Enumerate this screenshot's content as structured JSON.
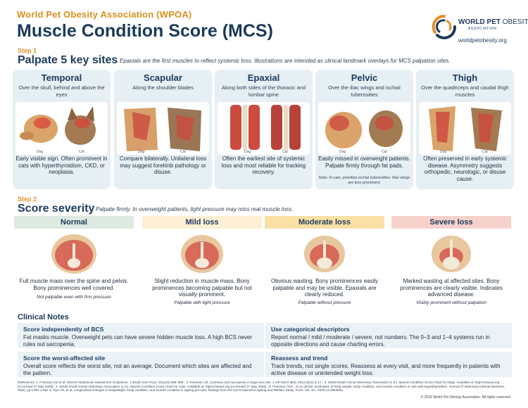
{
  "header": {
    "org": "World Pet Obesity Association (WPOA)",
    "title": "Muscle Condition Score (MCS)",
    "logo_line1_bold": "WORLD PET",
    "logo_line1_rest": " OBESITY",
    "logo_line2": "ASSOCIATION",
    "logo_url": "worldpetobesity.org"
  },
  "step1": {
    "label": "Step 1",
    "title": "Palpate 5 key sites",
    "note": "Epaxials are the first muscles to reflect systemic loss. Illustrations are intended as clinical landmark overlays for MCS palpation sites.",
    "sites": [
      {
        "name": "Temporal",
        "location": "Over the skull, behind and above the eyes",
        "desc": "Early visible sign. Often prominent in cats with hyperthyroidism, CKD, or neoplasia.",
        "dog": "Dog",
        "cat": "Cat"
      },
      {
        "name": "Scapular",
        "location": "Along the shoulder blades",
        "desc": "Compare bilaterally. Unilateral loss may suggest forelimb pathology or disuse.",
        "dog": "Dog",
        "cat": "Cat"
      },
      {
        "name": "Epaxial",
        "location": "Along both sides of the thoracic and lumbar spine",
        "desc": "Often the earliest site of systemic loss and most reliable for tracking recovery.",
        "dog": "Dog",
        "cat": "Cat"
      },
      {
        "name": "Pelvic",
        "location": "Over the iliac wings and ischial tuberosities",
        "desc": "Easily missed in overweight patients. Palpate firmly through fat pads.",
        "note": "Note: In cats, prioritize ischial tuberosities. Iliac wings are less prominent.",
        "dog": "Dog",
        "cat": "Cat"
      },
      {
        "name": "Thigh",
        "location": "Over the quadriceps and caudal thigh muscles",
        "desc": "Often preserved in early systemic disease. Asymmetry suggests orthopedic, neurologic, or disuse cause.",
        "dog": "Dog",
        "cat": "Cat"
      }
    ]
  },
  "step2": {
    "label": "Step 2",
    "title": "Score severity",
    "note": "Palpate firmly. In overweight patients, light pressure may miss real muscle loss.",
    "levels": [
      {
        "name": "Normal",
        "color": "#dde9e1",
        "desc": "Full muscle mass over the spine and pelvis. Bony prominences well covered.",
        "criterion": "Not palpable even with firm pressure"
      },
      {
        "name": "Mild loss",
        "color": "#fcefd3",
        "desc": "Slight reduction in muscle mass. Bony prominences becoming palpable but not visually prominent.",
        "criterion": "Palpable with light pressure"
      },
      {
        "name": "Moderate loss",
        "color": "#fbe0a6",
        "desc": "Obvious wasting. Bony prominences easily palpable and may be visible. Epaxials are clearly reduced.",
        "criterion": "Palpable without pressure"
      },
      {
        "name": "Severe loss",
        "color": "#f6d1cc",
        "desc": "Marked wasting at affected sites. Bony prominences are clearly visible. Indicates advanced disease.",
        "criterion": "Visibly prominent without palpation"
      }
    ]
  },
  "clinical": {
    "title": "Clinical Notes",
    "notes": [
      {
        "title": "Score independently of BCS",
        "body": "Fat masks muscle. Overweight pets can have severe hidden muscle loss. A high BCS never rules out sarcopenia."
      },
      {
        "title": "Use categorical descriptors",
        "body": "Report normal / mild / moderate / severe, not numbers. The 0–3 and 1–4 systems run in opposite directions and cause charting errors."
      },
      {
        "title": "Score the worst-affected site",
        "body": "Overall score reflects the worst site, not an average. Document which sites are affected and the pattern."
      },
      {
        "title": "Reassess and trend",
        "body": "Track trends, not single scores. Reassess at every visit, and more frequently in patients with active disease or unintended weight loss."
      }
    ]
  },
  "references": "References: 1. Freeman LM et al. WSAVA Nutritional Assessment Guidelines. J Small Anim Pract. 2011;52:385–396 ; 2. Freeman LM. Cachexia and sarcopenia in dogs and cats. J Vet Intern Med. 2012;26(1):3–17 ; 3. World Small Animal Veterinary Association (n.d.). Muscle Condition Score Chart for Dogs. Available at: https://wsava.org [Accessed 27 May 2026] ; 4. World Small Animal Veterinary Association (n.d.). Muscle Condition Score Chart for Cats. Available at: https://wsava.org [Accessed 27 May 2026] ; 5. Peterson, M.E., et al. (2016). Evaluation of body weight, body condition, and muscle condition in cats with hyperthyroidism. Journal of Veterinary Internal Medicine, 30(6), pp.1780–1789. 6. Pye CR, et al. Longitudinal changes in bodyweight, body condition, and muscle condition in ageing pet cats: findings from the Cat Prospective Ageing and Welfare Study. Front. Vet. Sci. 2025;12:1654002.",
  "copyright": "© 2026 World Pet Obesity Association. All rights reserved."
}
